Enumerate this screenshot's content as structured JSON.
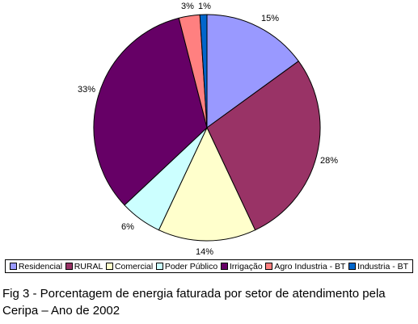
{
  "chart_data": {
    "type": "pie",
    "categories": [
      "Residencial",
      "RURAL",
      "Comercial",
      "Poder Público",
      "Irrigação",
      "Agro Industria - BT",
      "Industria  - BT"
    ],
    "values": [
      15,
      28,
      14,
      6,
      33,
      3,
      1
    ],
    "labels": [
      "15%",
      "28%",
      "14%",
      "6%",
      "33%",
      "3%",
      "1%"
    ],
    "colors": [
      "#9999FF",
      "#993366",
      "#FFFFCC",
      "#CCFFFF",
      "#660066",
      "#FF8080",
      "#0066CC"
    ],
    "start": "12 o'clock, clockwise",
    "legend_position": "bottom"
  },
  "caption": "Fig 3 - Porcentagem de energia faturada por setor de  atendimento pela Ceripa – Ano de 2002"
}
